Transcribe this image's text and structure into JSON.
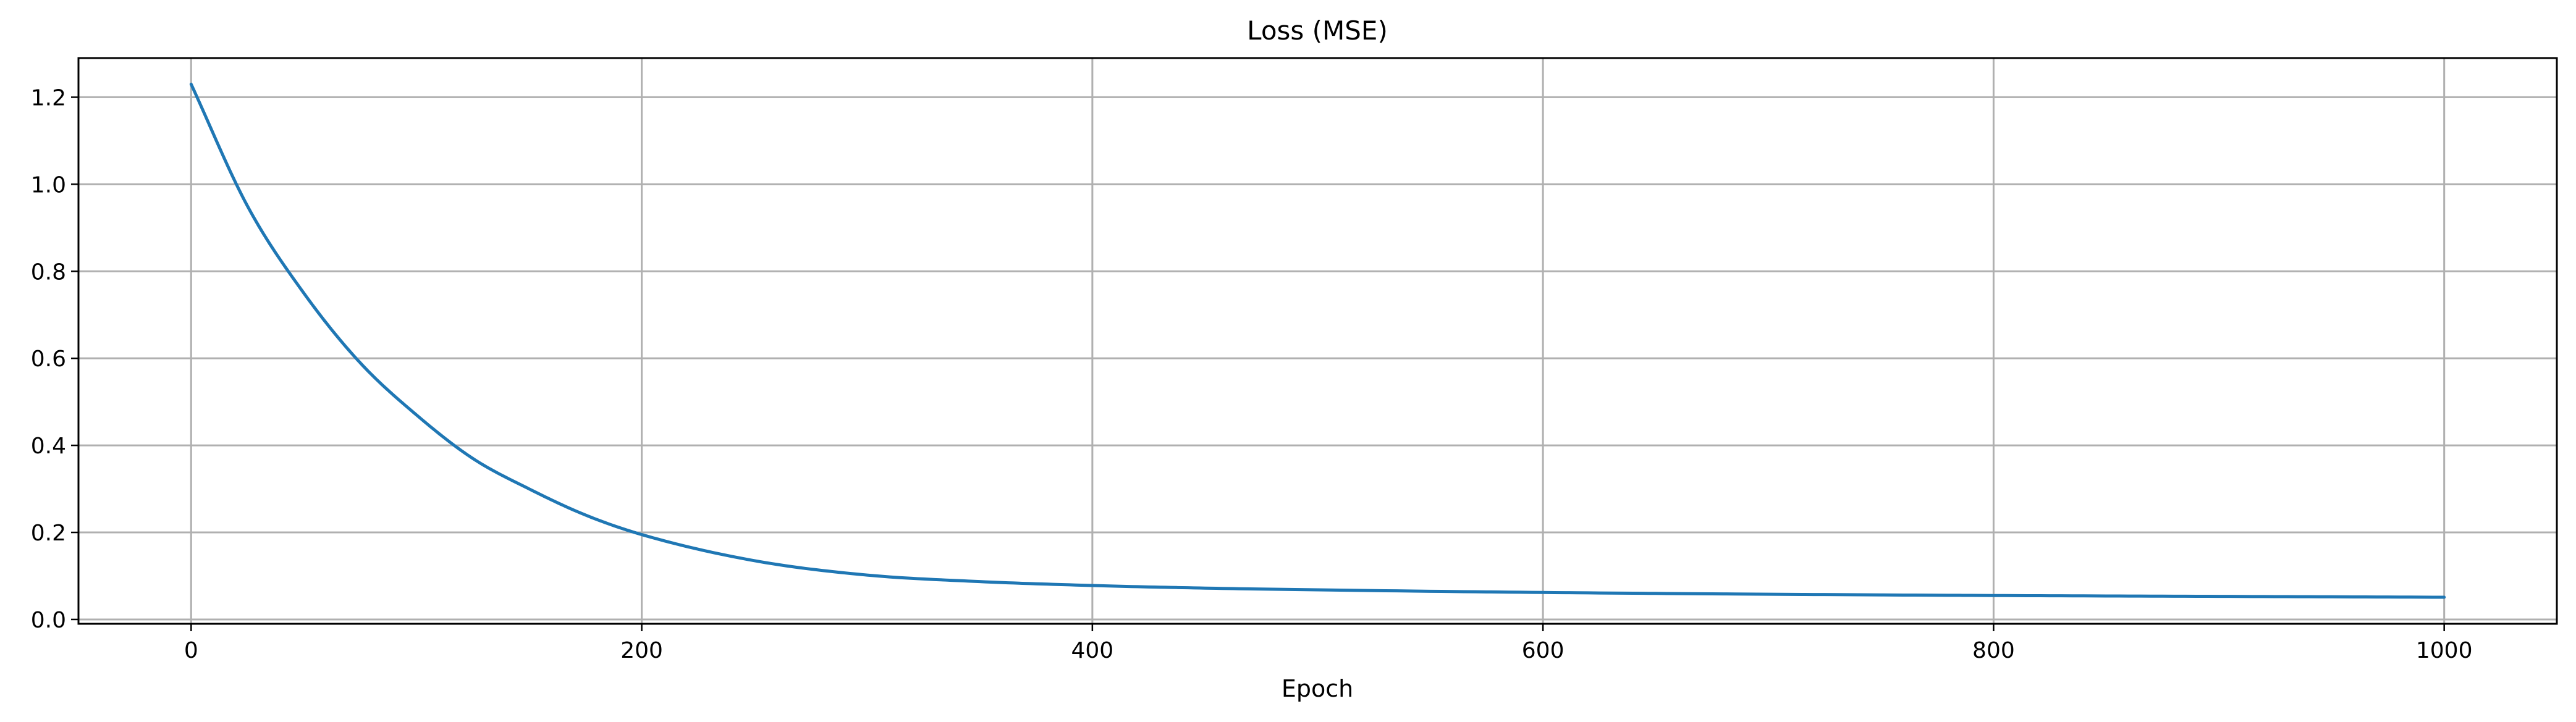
{
  "chart_data": {
    "type": "line",
    "title": "Loss (MSE)",
    "xlabel": "Epoch",
    "ylabel": "",
    "xlim": [
      -50,
      1050
    ],
    "ylim": [
      -0.01,
      1.29
    ],
    "xticks": [
      0,
      200,
      400,
      600,
      800,
      1000
    ],
    "xtick_labels": [
      "0",
      "200",
      "400",
      "600",
      "800",
      "1000"
    ],
    "yticks": [
      0.0,
      0.2,
      0.4,
      0.6,
      0.8,
      1.0,
      1.2
    ],
    "ytick_labels": [
      "0.0",
      "0.2",
      "0.4",
      "0.6",
      "0.8",
      "1.0",
      "1.2"
    ],
    "grid": true,
    "series": [
      {
        "color": "#1f77b4",
        "x": [
          0,
          25,
          50,
          75,
          100,
          125,
          150,
          175,
          200,
          250,
          300,
          350,
          400,
          450,
          500,
          600,
          700,
          800,
          900,
          1000
        ],
        "y": [
          1.23,
          0.95,
          0.75,
          0.59,
          0.47,
          0.37,
          0.3,
          0.24,
          0.195,
          0.135,
          0.102,
          0.087,
          0.078,
          0.072,
          0.068,
          0.062,
          0.058,
          0.055,
          0.053,
          0.051
        ]
      }
    ]
  }
}
